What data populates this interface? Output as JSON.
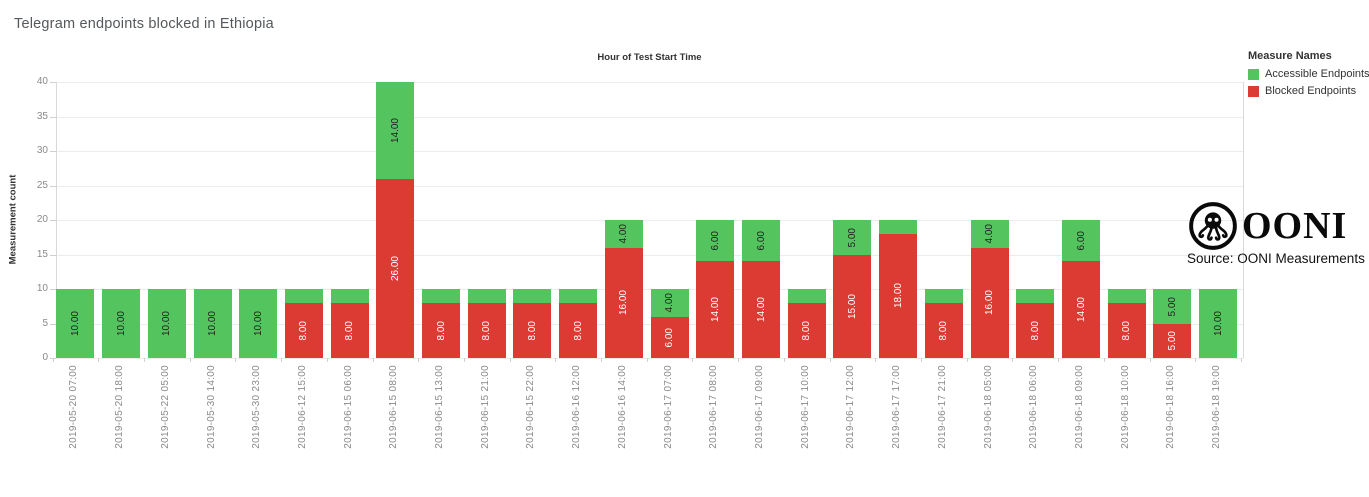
{
  "page": {
    "title": "Telegram endpoints blocked in Ethiopia"
  },
  "header": {
    "subtitle": "Hour of Test Start Time"
  },
  "legend": {
    "title": "Measure Names",
    "items": [
      {
        "label": "Accessible Endpoints",
        "color": "#54c45e"
      },
      {
        "label": "Blocked Endpoints",
        "color": "#dc3b34"
      }
    ]
  },
  "branding": {
    "logo_icon": "ooni-octopus-icon",
    "wordmark": "OONI",
    "source_text": "Source: OONI Measurements"
  },
  "chart_data": {
    "type": "bar",
    "stacked": true,
    "title": "Telegram endpoints blocked in Ethiopia",
    "subtitle": "Hour of Test Start Time",
    "xlabel": "Hour of Test Start Time",
    "ylabel": "Measurement count",
    "ylim": [
      0,
      40
    ],
    "yticks": [
      0,
      5,
      10,
      15,
      20,
      25,
      30,
      35,
      40
    ],
    "grid": true,
    "legend_position": "top-right",
    "categories": [
      "2019-05-20  07:00",
      "2019-05-20  18:00",
      "2019-05-22  05:00",
      "2019-05-30  14:00",
      "2019-05-30  23:00",
      "2019-06-12  15:00",
      "2019-06-15  06:00",
      "2019-06-15  08:00",
      "2019-06-15  13:00",
      "2019-06-15  21:00",
      "2019-06-15  22:00",
      "2019-06-16  12:00",
      "2019-06-16  14:00",
      "2019-06-17  07:00",
      "2019-06-17  08:00",
      "2019-06-17  09:00",
      "2019-06-17  10:00",
      "2019-06-17  12:00",
      "2019-06-17  17:00",
      "2019-06-17  21:00",
      "2019-06-18  05:00",
      "2019-06-18  06:00",
      "2019-06-18  09:00",
      "2019-06-18  10:00",
      "2019-06-18  16:00",
      "2019-06-18  19:00"
    ],
    "series": [
      {
        "name": "Blocked Endpoints",
        "color": "#dc3b34",
        "label_color": "#ffffff",
        "values": [
          0,
          0,
          0,
          0,
          0,
          8,
          8,
          26,
          8,
          8,
          8,
          8,
          16,
          6,
          14,
          14,
          8,
          15,
          18,
          8,
          16,
          8,
          14,
          8,
          5,
          0
        ],
        "labels": [
          "",
          "",
          "",
          "",
          "",
          "8.00",
          "8.00",
          "26.00",
          "8.00",
          "8.00",
          "8.00",
          "8.00",
          "16.00",
          "6.00",
          "14.00",
          "14.00",
          "8.00",
          "15.00",
          "18.00",
          "8.00",
          "16.00",
          "8.00",
          "14.00",
          "8.00",
          "5.00",
          ""
        ]
      },
      {
        "name": "Accessible Endpoints",
        "color": "#54c45e",
        "label_color": "#222222",
        "values": [
          10,
          10,
          10,
          10,
          10,
          2,
          2,
          14,
          2,
          2,
          2,
          2,
          4,
          4,
          6,
          6,
          2,
          5,
          2,
          2,
          4,
          2,
          6,
          2,
          5,
          10
        ],
        "labels": [
          "10.00",
          "10.00",
          "10.00",
          "10.00",
          "10.00",
          "",
          "",
          "14.00",
          "",
          "",
          "",
          "",
          "4.00",
          "4.00",
          "6.00",
          "6.00",
          "",
          "5.00",
          "",
          "",
          "4.00",
          "",
          "6.00",
          "",
          "5.00",
          "10.00"
        ]
      }
    ]
  }
}
